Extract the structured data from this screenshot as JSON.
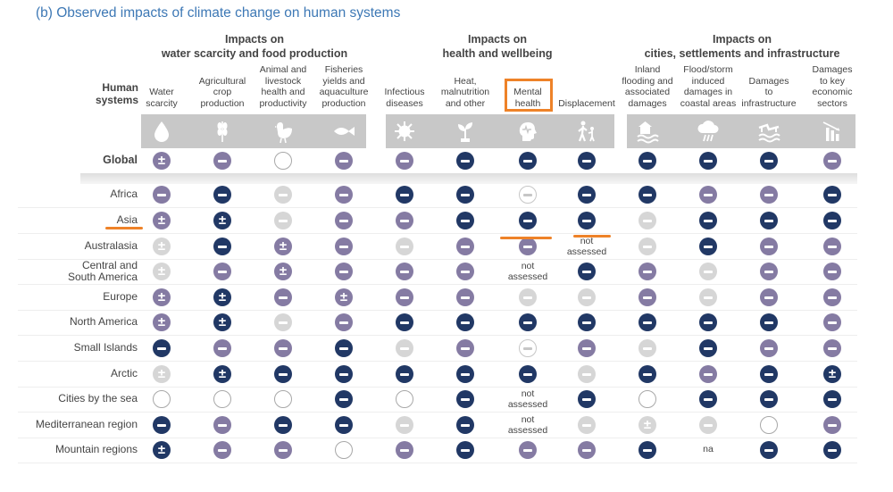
{
  "title": "(b) Observed impacts of climate change on human systems",
  "groups": [
    {
      "line1": "Impacts on",
      "line2": "water scarcity and food production"
    },
    {
      "line1": "Impacts on",
      "line2": "health and wellbeing"
    },
    {
      "line1": "Impacts on",
      "line2": "cities, settlements and infrastructure"
    }
  ],
  "row_header": [
    "Human",
    "systems"
  ],
  "columns": [
    {
      "label": [
        "Water",
        "scarcity"
      ],
      "icon": "water-drop-icon"
    },
    {
      "label": [
        "Agricultural",
        "crop",
        "production"
      ],
      "icon": "wheat-icon"
    },
    {
      "label": [
        "Animal and",
        "livestock",
        "health and",
        "productivity"
      ],
      "icon": "chicken-icon"
    },
    {
      "label": [
        "Fisheries",
        "yields and",
        "aquaculture",
        "production"
      ],
      "icon": "fish-icon"
    },
    {
      "label": [
        "Infectious",
        "diseases"
      ],
      "icon": "virus-icon"
    },
    {
      "label": [
        "Heat,",
        "malnutrition",
        "and other"
      ],
      "icon": "plant-icon"
    },
    {
      "label": [
        "Mental",
        "health"
      ],
      "icon": "head-heartbeat-icon"
    },
    {
      "label": [
        "Displacement"
      ],
      "icon": "displaced-people-icon"
    },
    {
      "label": [
        "Inland",
        "flooding and",
        "associated",
        "damages"
      ],
      "icon": "flood-icon"
    },
    {
      "label": [
        "Flood/storm",
        "induced",
        "damages in",
        "coastal areas"
      ],
      "icon": "storm-cloud-icon"
    },
    {
      "label": [
        "Damages",
        "to",
        "infrastructure"
      ],
      "icon": "damaged-infrastructure-icon"
    },
    {
      "label": [
        "Damages",
        "to key",
        "economic",
        "sectors"
      ],
      "icon": "declining-chart-icon"
    }
  ],
  "rows": [
    {
      "label": "Global",
      "cells": [
        "Mpm",
        "M",
        "H",
        "M",
        "M",
        "D",
        "D",
        "D",
        "D",
        "D",
        "D",
        "M"
      ]
    },
    {
      "label": "Africa",
      "cells": [
        "M",
        "D",
        "L",
        "M",
        "D",
        "D",
        "F",
        "D",
        "D",
        "M",
        "M",
        "D"
      ]
    },
    {
      "label": "Asia",
      "cells": [
        "Mpm",
        "Dpm",
        "L",
        "M",
        "M",
        "D",
        "D",
        "D",
        "L",
        "D",
        "D",
        "D"
      ]
    },
    {
      "label": "Australasia",
      "cells": [
        "Lpm",
        "D",
        "Mpm",
        "M",
        "L",
        "M",
        "M",
        "NA",
        "L",
        "D",
        "M",
        "M"
      ]
    },
    {
      "label": [
        "Central and",
        "South America"
      ],
      "cells": [
        "Lpm",
        "M",
        "Mpm",
        "M",
        "M",
        "M",
        "NA",
        "D",
        "M",
        "L",
        "M",
        "M"
      ]
    },
    {
      "label": "Europe",
      "cells": [
        "Mpm",
        "Dpm",
        "M",
        "Mpm",
        "M",
        "M",
        "L",
        "L",
        "M",
        "L",
        "M",
        "M"
      ]
    },
    {
      "label": "North America",
      "cells": [
        "Mpm",
        "Dpm",
        "L",
        "M",
        "D",
        "D",
        "D",
        "D",
        "D",
        "D",
        "D",
        "M"
      ]
    },
    {
      "label": "Small Islands",
      "cells": [
        "D",
        "M",
        "M",
        "D",
        "L",
        "M",
        "F",
        "M",
        "L",
        "D",
        "M",
        "M"
      ]
    },
    {
      "label": "Arctic",
      "cells": [
        "Lpm",
        "Dpm",
        "D",
        "D",
        "D",
        "D",
        "D",
        "L",
        "D",
        "M",
        "D",
        "Dpm"
      ]
    },
    {
      "label": "Cities by the sea",
      "cells": [
        "H",
        "H",
        "H",
        "D",
        "H",
        "D",
        "NA",
        "D",
        "H",
        "D",
        "D",
        "D"
      ]
    },
    {
      "label": "Mediterranean region",
      "cells": [
        "D",
        "M",
        "D",
        "D",
        "L",
        "D",
        "NA",
        "L",
        "Lpm",
        "L",
        "H",
        "M"
      ]
    },
    {
      "label": "Mountain regions",
      "cells": [
        "Dpm",
        "M",
        "M",
        "H",
        "M",
        "D",
        "M",
        "M",
        "D",
        "na",
        "D",
        "D"
      ]
    }
  ],
  "not_assessed": [
    "not",
    "assessed"
  ],
  "na_text": "na",
  "colors": {
    "title": "#3d78b5",
    "very_high_confidence": "#213865",
    "high_confidence": "#857ba3",
    "low_confidence": "#d6d6d6",
    "icon_band": "#c8c8c8",
    "highlight": "#ee8228"
  }
}
